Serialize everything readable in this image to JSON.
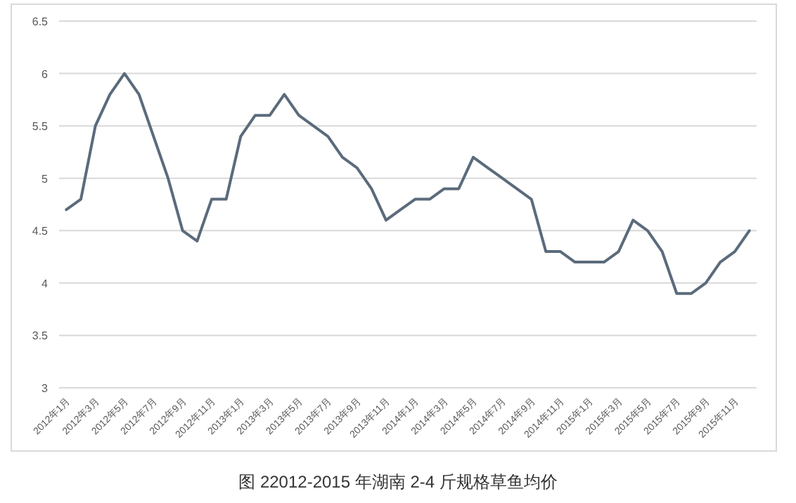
{
  "chart_data": {
    "type": "line",
    "title": "图 22012-2015 年湖南 2-4 斤规格草鱼均价",
    "categories": [
      "2012年1月",
      null,
      "2012年3月",
      null,
      "2012年5月",
      null,
      "2012年7月",
      null,
      "2012年9月",
      null,
      "2012年11月",
      null,
      "2013年1月",
      null,
      "2013年3月",
      null,
      "2013年5月",
      null,
      "2013年7月",
      null,
      "2013年9月",
      null,
      "2013年11月",
      null,
      "2014年1月",
      null,
      "2014年3月",
      null,
      "2014年5月",
      null,
      "2014年7月",
      null,
      "2014年9月",
      null,
      "2014年11月",
      null,
      "2015年1月",
      null,
      "2015年3月",
      null,
      "2015年5月",
      null,
      "2015年7月",
      null,
      "2015年9月",
      null,
      "2015年11月",
      null
    ],
    "series": [
      {
        "color": "#5b6b7c",
        "values": [
          4.7,
          4.8,
          5.5,
          5.8,
          6.0,
          5.8,
          5.4,
          5.0,
          4.5,
          4.4,
          4.8,
          4.8,
          5.4,
          5.6,
          5.6,
          5.8,
          5.6,
          5.5,
          5.4,
          5.2,
          5.1,
          4.9,
          4.6,
          4.7,
          4.8,
          4.8,
          4.9,
          4.9,
          5.2,
          5.1,
          5.0,
          4.9,
          4.8,
          4.3,
          4.3,
          4.2,
          4.2,
          4.2,
          4.3,
          4.6,
          4.5,
          4.3,
          3.9,
          3.9,
          4.0,
          4.2,
          4.3,
          4.5
        ]
      }
    ],
    "ylim": [
      3,
      6.5
    ],
    "yticks": [
      3,
      3.5,
      4,
      4.5,
      5,
      5.5,
      6,
      6.5
    ],
    "grid": "y"
  }
}
